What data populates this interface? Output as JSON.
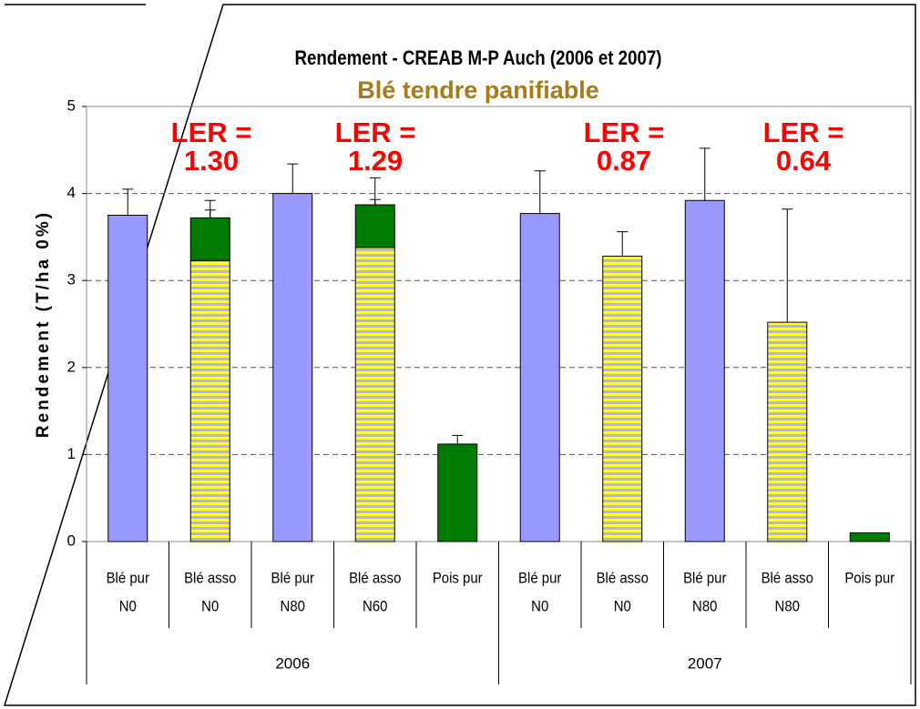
{
  "chart_data": {
    "type": "bar",
    "stacked": true,
    "title": "Rendement - CREAB M-P Auch (2006 et 2007)",
    "subtitle": "Blé tendre panifiable",
    "y_label": "Rendement (T/ha 0%)",
    "categories": [
      [
        "Blé pur",
        "N0"
      ],
      [
        "Blé asso",
        "N0"
      ],
      [
        "Blé pur",
        "N80"
      ],
      [
        "Blé asso",
        "N60"
      ],
      [
        "Pois pur"
      ],
      [
        "Blé pur",
        "N0"
      ],
      [
        "Blé asso",
        "N0"
      ],
      [
        "Blé pur",
        "N80"
      ],
      [
        "Blé asso",
        "N80"
      ],
      [
        "Pois pur"
      ]
    ],
    "groups": [
      "2006",
      "2007"
    ],
    "series": [
      {
        "color": "#9999ff",
        "values": [
          3.75,
          null,
          4.0,
          null,
          null,
          3.77,
          null,
          3.92,
          null,
          null
        ],
        "errors": [
          0.3,
          null,
          0.34,
          null,
          null,
          0.49,
          null,
          0.6,
          null,
          null
        ]
      },
      {
        "color": "#ffff33",
        "pattern": "stripes",
        "values": [
          null,
          3.23,
          null,
          3.38,
          null,
          null,
          3.28,
          null,
          2.52,
          null
        ],
        "errors": [
          null,
          0.58,
          null,
          0.55,
          null,
          null,
          0.28,
          null,
          1.3,
          null
        ]
      },
      {
        "color": "#007a00",
        "values": [
          null,
          0.49,
          null,
          0.49,
          1.12,
          null,
          null,
          null,
          null,
          0.1
        ],
        "errors": [
          null,
          0.2,
          null,
          0.31,
          0.1,
          null,
          null,
          null,
          null,
          null
        ]
      }
    ],
    "annotations": [
      [
        "LER =",
        "1.30"
      ],
      [
        "LER =",
        "1.29"
      ],
      [
        "LER =",
        "0.87"
      ],
      [
        "LER =",
        "0.64"
      ]
    ],
    "ylim": [
      0,
      5
    ],
    "yticks": [
      0,
      1,
      2,
      3,
      4,
      5
    ],
    "grid": true
  }
}
